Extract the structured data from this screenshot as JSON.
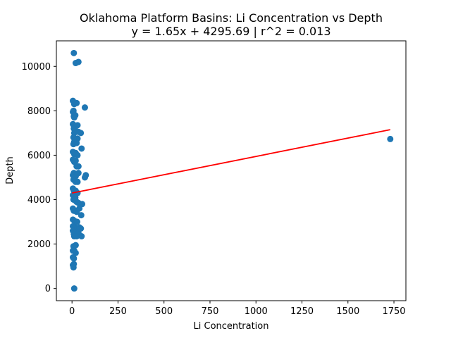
{
  "chart_data": {
    "type": "scatter",
    "title_line1": "Oklahoma Platform Basins: Li Concentration vs Depth",
    "title_line2": "y = 1.65x + 4295.69 | r^2 = 0.013",
    "xlabel": "Li Concentration",
    "ylabel": "Depth",
    "xlim": [
      -85,
      1815
    ],
    "ylim": [
      -550,
      11150
    ],
    "xticks": [
      0,
      250,
      500,
      750,
      1000,
      1250,
      1500,
      1750
    ],
    "yticks": [
      0,
      2000,
      4000,
      6000,
      8000,
      10000
    ],
    "grid": false,
    "colors": {
      "points": "#1f77b4",
      "fit_line": "#ff0000"
    },
    "fit": {
      "slope": 1.65,
      "intercept": 4295.69,
      "x_range": [
        0,
        1730
      ]
    },
    "series": [
      {
        "x": [
          10,
          20,
          35,
          5,
          25,
          12,
          70,
          5,
          8,
          10,
          18,
          12,
          30,
          5,
          20,
          10,
          12,
          35,
          48,
          8,
          15,
          30,
          12,
          8,
          25,
          52,
          5,
          12,
          20,
          30,
          5,
          12,
          20,
          25,
          35,
          10,
          25,
          35,
          5,
          12,
          20,
          75,
          70,
          8,
          15,
          20,
          30,
          5,
          10,
          20,
          30,
          5,
          12,
          18,
          8,
          15,
          20,
          25,
          35,
          45,
          55,
          5,
          10,
          18,
          25,
          5,
          12,
          20,
          28,
          50,
          5,
          15,
          22,
          30,
          40,
          5,
          10,
          18,
          35,
          10,
          20,
          30,
          12,
          25,
          48,
          52,
          40,
          8,
          12,
          20,
          5,
          20,
          5,
          10,
          10,
          5,
          8,
          12,
          1730
        ],
        "y": [
          10600,
          10150,
          10200,
          8450,
          8350,
          8300,
          8150,
          7950,
          8000,
          7750,
          7800,
          7700,
          7350,
          7400,
          7300,
          7200,
          7000,
          7050,
          7000,
          6800,
          6700,
          6750,
          6600,
          6500,
          6550,
          6300,
          6150,
          6050,
          6100,
          6000,
          5800,
          5700,
          5750,
          5500,
          5500,
          5200,
          5150,
          5200,
          5100,
          5000,
          5050,
          5100,
          5000,
          4900,
          4850,
          4800,
          4800,
          4500,
          4400,
          4400,
          4300,
          4200,
          4150,
          4100,
          4000,
          4000,
          3950,
          3900,
          3850,
          3800,
          3800,
          3600,
          3500,
          3500,
          3450,
          3100,
          3050,
          3000,
          3000,
          3300,
          2800,
          2750,
          2700,
          2700,
          2750,
          2600,
          2550,
          2500,
          2500,
          2450,
          2400,
          2450,
          2350,
          2350,
          2700,
          2350,
          3600,
          1900,
          1700,
          1600,
          1700,
          1950,
          1400,
          1350,
          1100,
          1050,
          950,
          0,
          6730
        ]
      }
    ]
  }
}
